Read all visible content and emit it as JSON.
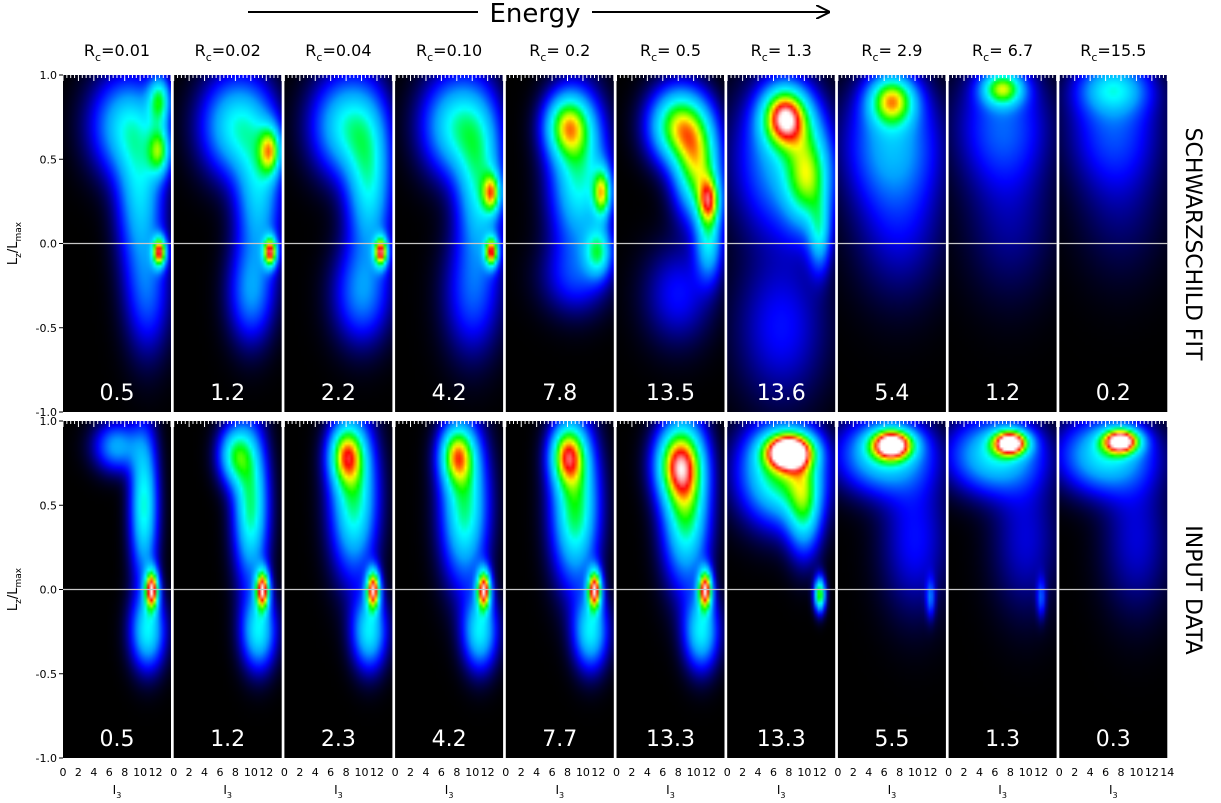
{
  "chart_data": {
    "type": "heatmap",
    "title": "Energy",
    "row_labels": [
      "SCHWARZSCHILD FIT",
      "INPUT DATA"
    ],
    "column_labels": [
      "R_c=0.01",
      "R_c=0.02",
      "R_c=0.04",
      "R_c=0.10",
      "R_c= 0.2",
      "R_c= 0.5",
      "R_c= 1.3",
      "R_c= 2.9",
      "R_c= 6.7",
      "R_c=15.5"
    ],
    "column_label_prefix": "R",
    "column_label_subscript": "c",
    "column_label_values": [
      "=0.01",
      "=0.02",
      "=0.04",
      "=0.10",
      "= 0.2",
      "= 0.5",
      "= 1.3",
      "= 2.9",
      "= 6.7",
      "=15.5"
    ],
    "ylabel": "L_z/L_max",
    "ylabel_parts": {
      "main": "L",
      "sub1": "z",
      "slash": "/L",
      "sub2": "max"
    },
    "xlabel": "I_3",
    "xlabel_parts": {
      "main": "I",
      "sub": "3"
    },
    "ylim": [
      -1.0,
      1.0
    ],
    "xlim": [
      0,
      14
    ],
    "y_ticks": [
      "1.0",
      "0.5",
      "0.0",
      "-0.5",
      "-1.0"
    ],
    "x_ticks": [
      "0",
      "2",
      "4",
      "6",
      "8",
      "10",
      "12"
    ],
    "x_ticks_last_panel": [
      "0",
      "2",
      "4",
      "6",
      "8",
      "10",
      "12",
      "14"
    ],
    "reference_line_y": 0.0,
    "panel_values": [
      [
        "0.5",
        "1.2",
        "2.2",
        "4.2",
        "7.8",
        "13.5",
        "13.6",
        "5.4",
        "1.2",
        "0.2"
      ],
      [
        "0.5",
        "1.2",
        "2.3",
        "4.2",
        "7.7",
        "13.3",
        "13.3",
        "5.5",
        "1.3",
        "0.3"
      ]
    ],
    "colormap": [
      "#000000",
      "#0000ff",
      "#00a0ff",
      "#00ffff",
      "#00ff00",
      "#ffff00",
      "#ff0000",
      "#ffffff"
    ],
    "blobs": [
      [
        [
          [
            12.5,
            0.85,
            1.0,
            0.1,
            0.45
          ],
          [
            12.5,
            0.55,
            1.0,
            0.1,
            0.45
          ],
          [
            8,
            0.7,
            3.0,
            0.2,
            0.35
          ],
          [
            10,
            0.3,
            2.0,
            0.3,
            0.35
          ],
          [
            12.5,
            -0.05,
            0.6,
            0.06,
            0.75
          ],
          [
            11,
            -0.3,
            2.0,
            0.25,
            0.2
          ]
        ],
        [
          [
            8,
            0.7,
            3.0,
            0.2,
            0.4
          ],
          [
            12.5,
            0.55,
            1.0,
            0.1,
            0.5
          ],
          [
            11,
            0.3,
            2.0,
            0.3,
            0.35
          ],
          [
            12.5,
            -0.05,
            0.6,
            0.06,
            0.75
          ],
          [
            10,
            -0.3,
            2.0,
            0.2,
            0.25
          ]
        ],
        [
          [
            8,
            0.7,
            3.0,
            0.2,
            0.4
          ],
          [
            11,
            0.35,
            2.0,
            0.3,
            0.4
          ],
          [
            12.5,
            -0.05,
            0.6,
            0.06,
            0.75
          ],
          [
            10,
            -0.3,
            2.5,
            0.2,
            0.25
          ]
        ],
        [
          [
            8,
            0.7,
            3.0,
            0.2,
            0.42
          ],
          [
            11,
            0.35,
            2.0,
            0.3,
            0.4
          ],
          [
            12.5,
            0.3,
            0.8,
            0.08,
            0.5
          ],
          [
            12.5,
            -0.05,
            0.6,
            0.06,
            0.7
          ],
          [
            10,
            -0.3,
            2.5,
            0.25,
            0.2
          ]
        ],
        [
          [
            8,
            0.7,
            2.0,
            0.13,
            0.55
          ],
          [
            9.5,
            0.4,
            2.5,
            0.3,
            0.45
          ],
          [
            12.5,
            0.3,
            0.8,
            0.1,
            0.55
          ],
          [
            12,
            -0.05,
            1.2,
            0.1,
            0.4
          ],
          [
            9,
            -0.2,
            3.0,
            0.15,
            0.15
          ]
        ],
        [
          [
            8,
            0.7,
            2.5,
            0.15,
            0.62
          ],
          [
            10.5,
            0.45,
            2.0,
            0.2,
            0.6
          ],
          [
            12,
            0.25,
            1.0,
            0.1,
            0.55
          ],
          [
            12,
            0.0,
            1.2,
            0.15,
            0.35
          ],
          [
            8,
            -0.3,
            3.0,
            0.2,
            0.15
          ]
        ],
        [
          [
            7.5,
            0.75,
            2.0,
            0.12,
            0.8
          ],
          [
            10.5,
            0.4,
            2.0,
            0.2,
            0.5
          ],
          [
            7,
            0.5,
            4.0,
            0.3,
            0.3
          ],
          [
            12,
            0.05,
            1.0,
            0.15,
            0.3
          ],
          [
            7,
            -0.5,
            4.0,
            0.3,
            0.15
          ]
        ],
        [
          [
            7,
            0.85,
            2.0,
            0.1,
            0.6
          ],
          [
            7,
            0.6,
            4.0,
            0.25,
            0.3
          ],
          [
            8,
            0.1,
            4.0,
            0.3,
            0.12
          ]
        ],
        [
          [
            7,
            0.92,
            1.8,
            0.07,
            0.55
          ],
          [
            7,
            0.7,
            4.0,
            0.25,
            0.22
          ],
          [
            8,
            0.1,
            4.0,
            0.3,
            0.08
          ]
        ],
        [
          [
            7,
            0.92,
            3.0,
            0.1,
            0.3
          ],
          [
            7,
            0.7,
            4.0,
            0.25,
            0.2
          ],
          [
            8,
            0.2,
            4.0,
            0.3,
            0.06
          ]
        ]
      ],
      [
        [
          [
            11.5,
            0.0,
            0.6,
            0.08,
            0.85
          ],
          [
            10.5,
            0.5,
            1.2,
            0.3,
            0.45
          ],
          [
            7,
            0.85,
            2.0,
            0.1,
            0.3
          ],
          [
            11,
            -0.25,
            1.5,
            0.15,
            0.4
          ]
        ],
        [
          [
            11.5,
            0.0,
            0.6,
            0.08,
            0.85
          ],
          [
            10,
            0.5,
            1.5,
            0.3,
            0.5
          ],
          [
            8,
            0.8,
            1.5,
            0.12,
            0.45
          ],
          [
            11,
            -0.25,
            1.5,
            0.15,
            0.4
          ]
        ],
        [
          [
            11.5,
            0.0,
            0.6,
            0.08,
            0.85
          ],
          [
            9,
            0.55,
            2.0,
            0.3,
            0.5
          ],
          [
            8,
            0.8,
            1.5,
            0.12,
            0.55
          ],
          [
            11,
            -0.25,
            1.5,
            0.15,
            0.4
          ]
        ],
        [
          [
            11.5,
            0.0,
            0.6,
            0.08,
            0.85
          ],
          [
            9,
            0.5,
            2.0,
            0.3,
            0.5
          ],
          [
            8,
            0.8,
            1.5,
            0.12,
            0.55
          ],
          [
            11,
            -0.25,
            1.5,
            0.15,
            0.4
          ]
        ],
        [
          [
            11.5,
            0.0,
            0.6,
            0.08,
            0.85
          ],
          [
            9,
            0.5,
            2.0,
            0.3,
            0.55
          ],
          [
            8,
            0.8,
            1.5,
            0.12,
            0.6
          ],
          [
            11,
            -0.25,
            1.5,
            0.15,
            0.4
          ]
        ],
        [
          [
            11.5,
            0.0,
            0.6,
            0.08,
            0.85
          ],
          [
            9,
            0.5,
            2.0,
            0.3,
            0.55
          ],
          [
            8,
            0.75,
            2.0,
            0.15,
            0.62
          ],
          [
            11,
            -0.25,
            1.5,
            0.15,
            0.4
          ]
        ],
        [
          [
            8,
            0.82,
            2.0,
            0.07,
            1.0
          ],
          [
            7,
            0.7,
            3.5,
            0.2,
            0.55
          ],
          [
            10,
            0.5,
            1.5,
            0.2,
            0.4
          ],
          [
            12,
            -0.03,
            0.5,
            0.07,
            0.6
          ]
        ],
        [
          [
            7,
            0.86,
            1.8,
            0.06,
            0.92
          ],
          [
            6,
            0.8,
            4.0,
            0.15,
            0.4
          ],
          [
            10,
            0.3,
            3.0,
            0.3,
            0.15
          ],
          [
            12,
            -0.05,
            0.4,
            0.08,
            0.2
          ]
        ],
        [
          [
            8,
            0.87,
            1.5,
            0.05,
            0.95
          ],
          [
            6,
            0.8,
            4.0,
            0.15,
            0.4
          ],
          [
            10,
            0.3,
            3.0,
            0.3,
            0.12
          ],
          [
            12,
            -0.05,
            0.4,
            0.08,
            0.18
          ]
        ],
        [
          [
            8,
            0.88,
            1.6,
            0.05,
            0.92
          ],
          [
            6,
            0.8,
            4.0,
            0.15,
            0.4
          ],
          [
            10,
            0.3,
            3.0,
            0.3,
            0.12
          ]
        ]
      ]
    ]
  }
}
